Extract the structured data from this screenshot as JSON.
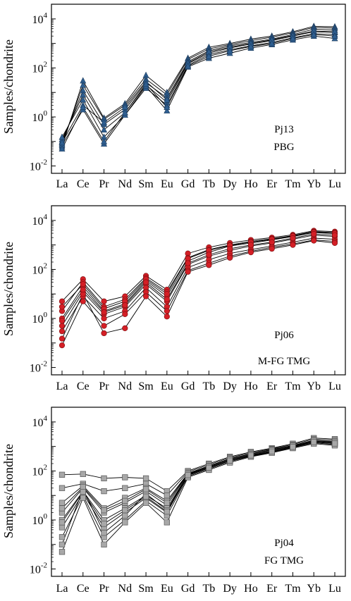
{
  "figure": {
    "x_categories": [
      "La",
      "Ce",
      "Pr",
      "Nd",
      "Sm",
      "Eu",
      "Gd",
      "Tb",
      "Dy",
      "Ho",
      "Er",
      "Tm",
      "Yb",
      "Lu"
    ],
    "y_axis_label": "Samples/chondrite",
    "y_tick_labels": [
      {
        "base": "10",
        "exp": "-2"
      },
      {
        "base": "10",
        "exp": "0"
      },
      {
        "base": "10",
        "exp": "2"
      },
      {
        "base": "10",
        "exp": "4"
      }
    ]
  },
  "chart_data": [
    {
      "type": "line",
      "scale": "log",
      "ylim": [
        0.01,
        100000
      ],
      "ylabel": "Samples/chondrite",
      "categories": [
        "La",
        "Ce",
        "Pr",
        "Nd",
        "Sm",
        "Eu",
        "Gd",
        "Tb",
        "Dy",
        "Ho",
        "Er",
        "Tm",
        "Yb",
        "Lu"
      ],
      "annotation": [
        "Pj13",
        "PBG"
      ],
      "marker": "triangle",
      "marker_color": "#2f5f91",
      "series": [
        {
          "values": [
            0.06,
            30,
            0.9,
            3.5,
            50,
            10,
            250,
            700,
            1000,
            1500,
            2000,
            3000,
            5000,
            4800
          ]
        },
        {
          "values": [
            0.08,
            20,
            0.8,
            3,
            35,
            8,
            220,
            600,
            900,
            1300,
            1800,
            2700,
            4500,
            4200
          ]
        },
        {
          "values": [
            0.1,
            12,
            0.5,
            2,
            25,
            6,
            180,
            500,
            800,
            1100,
            1500,
            2300,
            3800,
            3500
          ]
        },
        {
          "values": [
            0.12,
            8,
            0.3,
            1.5,
            20,
            4,
            150,
            400,
            650,
            950,
            1300,
            2000,
            3000,
            2800
          ]
        },
        {
          "values": [
            0.15,
            5,
            0.15,
            1.2,
            15,
            3,
            130,
            350,
            550,
            800,
            1100,
            1700,
            2500,
            2300
          ]
        },
        {
          "values": [
            0.07,
            2,
            0.08,
            1.2,
            18,
            1.8,
            110,
            250,
            400,
            650,
            900,
            1400,
            2000,
            1600
          ]
        },
        {
          "values": [
            0.09,
            3,
            0.6,
            2.5,
            28,
            5,
            160,
            450,
            700,
            1000,
            1400,
            2100,
            3200,
            3000
          ]
        },
        {
          "values": [
            0.05,
            2.5,
            0.1,
            1.5,
            22,
            2.5,
            120,
            300,
            500,
            750,
            1000,
            1600,
            2300,
            2000
          ]
        }
      ]
    },
    {
      "type": "line",
      "scale": "log",
      "ylim": [
        0.01,
        100000
      ],
      "ylabel": "Samples/chondrite",
      "categories": [
        "La",
        "Ce",
        "Pr",
        "Nd",
        "Sm",
        "Eu",
        "Gd",
        "Tb",
        "Dy",
        "Ho",
        "Er",
        "Tm",
        "Yb",
        "Lu"
      ],
      "annotation": [
        "Pj06",
        "M-FG TMG"
      ],
      "marker": "circle",
      "marker_color": "#d41f26",
      "series": [
        {
          "values": [
            5,
            40,
            5,
            8,
            55,
            15,
            450,
            800,
            1200,
            1600,
            2000,
            2600,
            3800,
            3500
          ]
        },
        {
          "values": [
            2,
            30,
            3,
            6,
            45,
            12,
            300,
            650,
            1000,
            1400,
            1800,
            2400,
            3500,
            3200
          ]
        },
        {
          "values": [
            1,
            20,
            2,
            4,
            35,
            8,
            220,
            500,
            900,
            1200,
            1600,
            2200,
            3200,
            2900
          ]
        },
        {
          "values": [
            0.5,
            12,
            1.5,
            3,
            25,
            5,
            160,
            350,
            600,
            900,
            1200,
            1700,
            2500,
            2200
          ]
        },
        {
          "values": [
            0.3,
            8,
            1,
            2,
            18,
            3,
            120,
            250,
            450,
            650,
            900,
            1300,
            1900,
            1700
          ]
        },
        {
          "values": [
            0.08,
            5,
            0.5,
            1.5,
            12,
            2,
            90,
            180,
            350,
            550,
            800,
            1100,
            1600,
            1400
          ]
        },
        {
          "values": [
            0.15,
            10,
            0.25,
            0.4,
            8,
            1.2,
            80,
            150,
            300,
            500,
            700,
            1000,
            1500,
            1200
          ]
        },
        {
          "values": [
            3,
            25,
            2.5,
            5,
            40,
            10,
            280,
            600,
            950,
            1300,
            1700,
            2300,
            3300,
            3000
          ]
        },
        {
          "values": [
            0.8,
            15,
            1.8,
            3.5,
            30,
            6,
            180,
            400,
            700,
            1000,
            1300,
            1900,
            2800,
            2500
          ]
        }
      ]
    },
    {
      "type": "line",
      "scale": "log",
      "ylim": [
        0.01,
        100000
      ],
      "ylabel": "Samples/chondrite",
      "categories": [
        "La",
        "Ce",
        "Pr",
        "Nd",
        "Sm",
        "Eu",
        "Gd",
        "Tb",
        "Dy",
        "Ho",
        "Er",
        "Tm",
        "Yb",
        "Lu"
      ],
      "annotation": [
        "Pj04",
        "FG TMG"
      ],
      "marker": "square",
      "marker_color": "#a8a8a8",
      "series": [
        {
          "values": [
            70,
            75,
            50,
            55,
            50,
            15,
            100,
            200,
            380,
            600,
            850,
            1300,
            2200,
            2000
          ]
        },
        {
          "values": [
            20,
            30,
            15,
            20,
            30,
            10,
            90,
            180,
            350,
            550,
            800,
            1200,
            2000,
            1800
          ]
        },
        {
          "values": [
            5,
            25,
            3,
            8,
            20,
            6,
            80,
            160,
            320,
            500,
            750,
            1100,
            1800,
            1600
          ]
        },
        {
          "values": [
            2,
            20,
            2,
            5,
            15,
            4,
            75,
            150,
            300,
            480,
            700,
            1050,
            1700,
            1500
          ]
        },
        {
          "values": [
            1,
            15,
            1,
            3,
            10,
            3,
            70,
            140,
            280,
            450,
            650,
            1000,
            1600,
            1400
          ]
        },
        {
          "values": [
            0.5,
            12,
            0.5,
            2,
            8,
            2,
            65,
            130,
            260,
            420,
            600,
            950,
            1500,
            1300
          ]
        },
        {
          "values": [
            0.2,
            10,
            0.2,
            1,
            6,
            1.5,
            60,
            120,
            240,
            400,
            580,
            900,
            1400,
            1200
          ]
        },
        {
          "values": [
            0.05,
            8,
            0.1,
            0.8,
            5,
            0.8,
            55,
            110,
            220,
            380,
            550,
            850,
            1300,
            1100
          ]
        },
        {
          "values": [
            0.1,
            18,
            0.3,
            1.5,
            12,
            2.5,
            70,
            140,
            270,
            440,
            640,
            980,
            1550,
            1350
          ]
        },
        {
          "values": [
            3,
            22,
            2.5,
            6,
            18,
            5,
            78,
            155,
            310,
            490,
            720,
            1080,
            1750,
            1550
          ]
        },
        {
          "values": [
            0.8,
            14,
            0.7,
            2.5,
            9,
            2.2,
            68,
            135,
            265,
            430,
            620,
            960,
            1520,
            1320
          ]
        }
      ]
    }
  ]
}
